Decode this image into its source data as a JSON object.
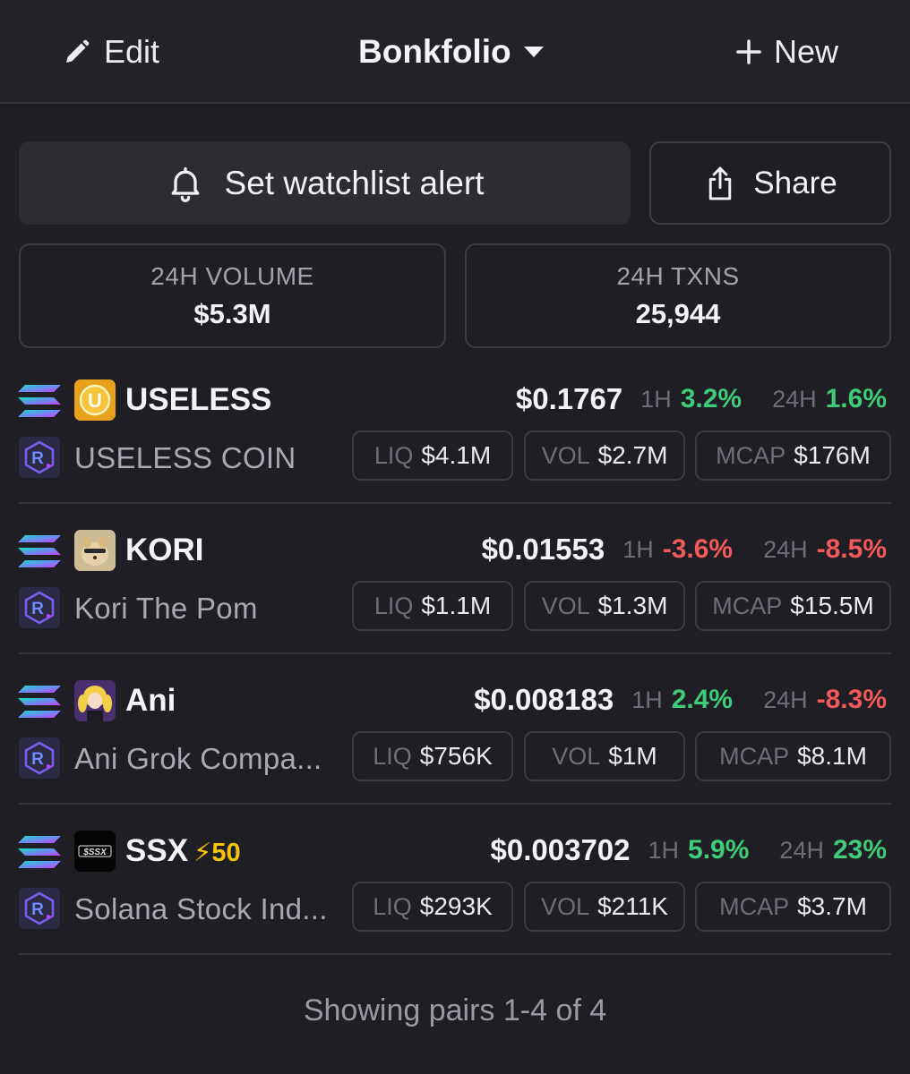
{
  "header": {
    "edit_label": "Edit",
    "title": "Bonkfolio",
    "new_label": "New"
  },
  "actions": {
    "alert_label": "Set watchlist alert",
    "share_label": "Share"
  },
  "stats": {
    "volume": {
      "label": "24H VOLUME",
      "value": "$5.3M"
    },
    "txns": {
      "label": "24H TXNS",
      "value": "25,944"
    }
  },
  "pairs": [
    {
      "symbol": "USELESS",
      "boost": "",
      "name": "USELESS COIN",
      "price": "$0.1767",
      "h1_label": "1H",
      "h1": "3.2%",
      "h1_dir": "pos",
      "h24_label": "24H",
      "h24": "1.6%",
      "h24_dir": "pos",
      "liq_label": "LIQ",
      "liq": "$4.1M",
      "vol_label": "VOL",
      "vol": "$2.7M",
      "mcap_label": "MCAP",
      "mcap": "$176M",
      "icon": "useless-coin-icon"
    },
    {
      "symbol": "KORI",
      "boost": "",
      "name": "Kori The Pom",
      "price": "$0.01553",
      "h1_label": "1H",
      "h1": "-3.6%",
      "h1_dir": "neg",
      "h24_label": "24H",
      "h24": "-8.5%",
      "h24_dir": "neg",
      "liq_label": "LIQ",
      "liq": "$1.1M",
      "vol_label": "VOL",
      "vol": "$1.3M",
      "mcap_label": "MCAP",
      "mcap": "$15.5M",
      "icon": "pomeranian-icon"
    },
    {
      "symbol": "Ani",
      "boost": "",
      "name": "Ani Grok Compa...",
      "price": "$0.008183",
      "h1_label": "1H",
      "h1": "2.4%",
      "h1_dir": "pos",
      "h24_label": "24H",
      "h24": "-8.3%",
      "h24_dir": "neg",
      "liq_label": "LIQ",
      "liq": "$756K",
      "vol_label": "VOL",
      "vol": "$1M",
      "mcap_label": "MCAP",
      "mcap": "$8.1M",
      "icon": "anime-girl-icon"
    },
    {
      "symbol": "SSX",
      "boost": "⚡50",
      "name": "Solana Stock Ind...",
      "price": "$0.003702",
      "h1_label": "1H",
      "h1": "5.9%",
      "h1_dir": "pos",
      "h24_label": "24H",
      "h24": "23%",
      "h24_dir": "pos",
      "liq_label": "LIQ",
      "liq": "$293K",
      "vol_label": "VOL",
      "vol": "$211K",
      "mcap_label": "MCAP",
      "mcap": "$3.7M",
      "icon": "ssx-logo-icon",
      "icon_text": "$SSX"
    }
  ],
  "footer": {
    "text": "Showing pairs 1-4 of 4"
  },
  "colors": {
    "positive": "#3fcc7a",
    "negative": "#f25a5a",
    "boost": "#f5c400",
    "background": "#1e1e24"
  }
}
